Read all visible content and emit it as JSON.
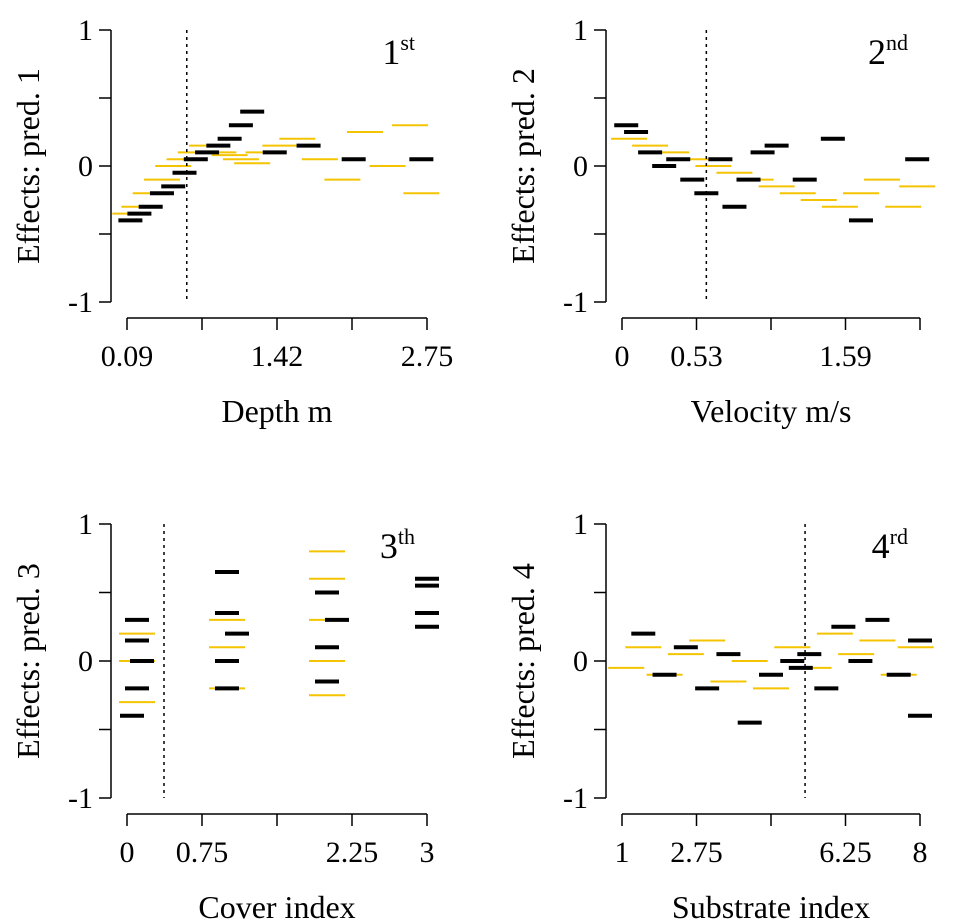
{
  "colors": {
    "accent": "#f5c400",
    "black": "#000000"
  },
  "chart_data": [
    {
      "type": "scatter",
      "panel_label": "1",
      "panel_sup": "st",
      "xlabel": "Depth m",
      "ylabel": "Effects: pred. 1",
      "xlim": [
        0.09,
        2.75
      ],
      "ylim": [
        -1,
        1
      ],
      "xticks": [
        0.09,
        0.755,
        1.42,
        2.085,
        2.75
      ],
      "xtick_labels": [
        "0.09",
        "",
        "1.42",
        "",
        "2.75"
      ],
      "yticks": [
        -1,
        -0.5,
        0,
        0.5,
        1
      ],
      "ytick_labels": [
        "-1",
        "",
        "0",
        "",
        "1"
      ],
      "vline": 0.62,
      "series": [
        {
          "color": "#f5c400",
          "x": [
            0.12,
            0.2,
            0.3,
            0.4,
            0.5,
            0.6,
            0.7,
            0.8,
            0.9,
            1.0,
            1.1,
            1.2,
            1.3,
            1.45,
            1.6,
            1.8,
            2.0,
            2.2,
            2.4,
            2.6,
            2.7
          ],
          "y": [
            -0.35,
            -0.3,
            -0.2,
            -0.1,
            0.0,
            0.05,
            0.1,
            0.15,
            0.1,
            0.08,
            0.05,
            0.02,
            0.1,
            0.15,
            0.2,
            0.05,
            -0.1,
            0.25,
            0.0,
            0.3,
            -0.2
          ]
        },
        {
          "color": "#000000",
          "x": [
            0.12,
            0.2,
            0.3,
            0.4,
            0.5,
            0.6,
            0.7,
            0.8,
            0.9,
            1.0,
            1.1,
            1.2,
            1.4,
            1.7,
            2.1,
            2.7
          ],
          "y": [
            -0.4,
            -0.35,
            -0.3,
            -0.2,
            -0.15,
            -0.05,
            0.05,
            0.1,
            0.15,
            0.2,
            0.3,
            0.4,
            0.1,
            0.15,
            0.05,
            0.05
          ]
        }
      ]
    },
    {
      "type": "scatter",
      "panel_label": "2",
      "panel_sup": "nd",
      "xlabel": "Velocity m/s",
      "ylabel": "Effects: pred. 2",
      "xlim": [
        0,
        2.12
      ],
      "ylim": [
        -1,
        1
      ],
      "xticks": [
        0,
        0.53,
        1.06,
        1.59,
        2.12
      ],
      "xtick_labels": [
        "0",
        "0.53",
        "",
        "1.59",
        ""
      ],
      "yticks": [
        -1,
        -0.5,
        0,
        0.5,
        1
      ],
      "ytick_labels": [
        "-1",
        "",
        "0",
        "",
        "1"
      ],
      "vline": 0.6,
      "series": [
        {
          "color": "#f5c400",
          "x": [
            0.05,
            0.2,
            0.35,
            0.5,
            0.65,
            0.8,
            0.95,
            1.1,
            1.25,
            1.4,
            1.55,
            1.7,
            1.85,
            2.0,
            2.1
          ],
          "y": [
            0.2,
            0.15,
            0.1,
            0.05,
            0.0,
            -0.05,
            -0.1,
            -0.15,
            -0.2,
            -0.25,
            -0.3,
            -0.2,
            -0.1,
            -0.3,
            -0.15
          ]
        },
        {
          "color": "#000000",
          "x": [
            0.03,
            0.1,
            0.2,
            0.3,
            0.4,
            0.5,
            0.6,
            0.7,
            0.8,
            0.9,
            1.0,
            1.1,
            1.3,
            1.5,
            1.7,
            2.1
          ],
          "y": [
            0.3,
            0.25,
            0.1,
            0.0,
            0.05,
            -0.1,
            -0.2,
            0.05,
            -0.3,
            -0.1,
            0.1,
            0.15,
            -0.1,
            0.2,
            -0.4,
            0.05
          ]
        }
      ]
    },
    {
      "type": "scatter",
      "panel_label": "3",
      "panel_sup": "th",
      "xlabel": "Cover index",
      "ylabel": "Effects: pred. 3",
      "xlim": [
        0,
        3
      ],
      "ylim": [
        -1,
        1
      ],
      "xticks": [
        0,
        0.75,
        1.5,
        2.25,
        3
      ],
      "xtick_labels": [
        "0",
        "0.75",
        "",
        "2.25",
        "3"
      ],
      "yticks": [
        -1,
        -0.5,
        0,
        0.5,
        1
      ],
      "ytick_labels": [
        "-1",
        "",
        "0",
        "",
        "1"
      ],
      "vline": 0.37,
      "series": [
        {
          "color": "#f5c400",
          "x": [
            0.1,
            0.1,
            0.1,
            1.0,
            1.0,
            1.0,
            2.0,
            2.0,
            2.0,
            2.0,
            2.0
          ],
          "y": [
            -0.3,
            0.0,
            0.2,
            -0.2,
            0.1,
            0.3,
            -0.25,
            0.0,
            0.3,
            0.6,
            0.8
          ]
        },
        {
          "color": "#000000",
          "x": [
            0.05,
            0.1,
            0.15,
            0.1,
            0.1,
            1.0,
            1.0,
            1.1,
            1.0,
            1.0,
            2.0,
            2.0,
            2.1,
            2.0,
            3.0,
            3.0,
            3.0,
            3.0
          ],
          "y": [
            -0.4,
            -0.2,
            0.0,
            0.15,
            0.3,
            -0.2,
            0.0,
            0.2,
            0.35,
            0.65,
            -0.15,
            0.1,
            0.3,
            0.5,
            0.25,
            0.35,
            0.55,
            0.6
          ]
        }
      ]
    },
    {
      "type": "scatter",
      "panel_label": "4",
      "panel_sup": "rd",
      "xlabel": "Substrate index",
      "ylabel": "Effects: pred. 4",
      "xlim": [
        1,
        8
      ],
      "ylim": [
        -1,
        1
      ],
      "xticks": [
        1,
        2.75,
        4.5,
        6.25,
        8
      ],
      "xtick_labels": [
        "1",
        "2.75",
        "",
        "6.25",
        "8"
      ],
      "yticks": [
        -1,
        -0.5,
        0,
        0.5,
        1
      ],
      "ytick_labels": [
        "-1",
        "",
        "0",
        "",
        "1"
      ],
      "vline": 5.3,
      "series": [
        {
          "color": "#f5c400",
          "x": [
            1.1,
            1.5,
            2.0,
            2.5,
            3.0,
            3.5,
            4.0,
            4.5,
            5.0,
            5.5,
            6.0,
            6.5,
            7.0,
            7.5,
            7.9
          ],
          "y": [
            -0.05,
            0.1,
            -0.1,
            0.05,
            0.15,
            -0.15,
            0.0,
            -0.2,
            0.1,
            -0.05,
            0.2,
            0.05,
            0.15,
            -0.1,
            0.1
          ]
        },
        {
          "color": "#000000",
          "x": [
            1.5,
            2.0,
            2.5,
            3.0,
            3.5,
            4.0,
            4.5,
            5.0,
            5.2,
            5.4,
            5.8,
            6.2,
            6.6,
            7.0,
            7.5,
            8.0,
            8.0
          ],
          "y": [
            0.2,
            -0.1,
            0.1,
            -0.2,
            0.05,
            -0.45,
            -0.1,
            0.0,
            -0.05,
            0.05,
            -0.2,
            0.25,
            0.0,
            0.3,
            -0.1,
            0.15,
            -0.4
          ]
        }
      ]
    }
  ]
}
